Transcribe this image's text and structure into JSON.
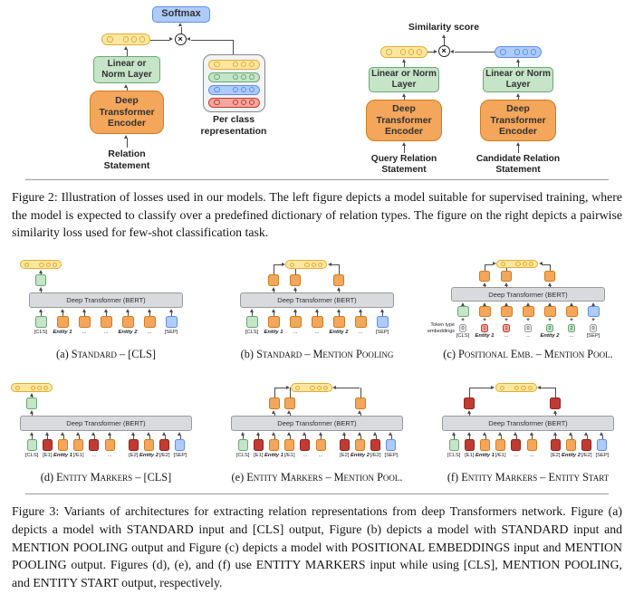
{
  "palette": {
    "yellow": {
      "bg": "#fbe7a0",
      "bd": "#e3ab37"
    },
    "green": {
      "bg": "#c5e4c8",
      "bd": "#68a871"
    },
    "orange": {
      "bg": "#f4a65b",
      "bd": "#cd7d20"
    },
    "red": {
      "bg": "#c23b32",
      "bd": "#8c241d"
    },
    "redlight": {
      "bg": "#f0a9a1",
      "bd": "#cb372b"
    },
    "blue": {
      "bg": "#aecbfa",
      "bd": "#5f8fe8"
    },
    "gray": {
      "bg": "#e7e8ea",
      "bd": "#9da1a6"
    }
  },
  "figure2": {
    "left": {
      "softmax": "Softmax",
      "linear": "Linear or Norm Layer",
      "encoder": "Deep Transformer Encoder",
      "input": "Relation Statement",
      "stack_label": "Per class representation",
      "stack_colors": [
        "yellow",
        "green",
        "blue",
        "redlight"
      ]
    },
    "right": {
      "score": "Similarity score",
      "branches": [
        {
          "embed_color": "yellow",
          "linear": "Linear or Norm Layer",
          "encoder": "Deep Transformer Encoder",
          "input": "Query Relation Statement"
        },
        {
          "embed_color": "blue",
          "linear": "Linear or Norm Layer",
          "encoder": "Deep Transformer Encoder",
          "input": "Candidate Relation Statement"
        }
      ]
    },
    "caption": "Figure 2: Illustration of losses used in our models. The left figure depicts a model suitable for supervised training, where the model is expected to classify over a predefined dictionary of relation types. The figure on the right depicts a pairwise similarity loss used for few-shot classification task."
  },
  "figure3": {
    "diagrams": [
      {
        "id": "a",
        "caption_prefix": "(a)",
        "caption": "Standard – [CLS]",
        "bert": "Deep Transformer (BERT)",
        "pill": "left",
        "outputs": [
          {
            "i": 0,
            "color": "green"
          }
        ],
        "tokens": [
          {
            "color": "green",
            "label": "[CLS]"
          },
          {
            "color": "orange",
            "label": "Entity 1",
            "em": true
          },
          {
            "color": "orange",
            "label": "..."
          },
          {
            "color": "orange",
            "label": "..."
          },
          {
            "color": "orange",
            "label": "Entity 2",
            "em": true
          },
          {
            "color": "orange",
            "label": "..."
          },
          {
            "color": "blue",
            "label": "[SEP]"
          }
        ]
      },
      {
        "id": "b",
        "caption_prefix": "(b)",
        "caption": "Standard – Mention Pooling",
        "bert": "Deep Transformer (BERT)",
        "pill": "center",
        "outputs": [
          {
            "i": 1,
            "color": "orange"
          },
          {
            "i": 2,
            "color": "orange"
          },
          {
            "i": 4,
            "color": "orange"
          }
        ],
        "tokens": [
          {
            "color": "green",
            "label": "[CLS]"
          },
          {
            "color": "orange",
            "label": "Entity 1",
            "em": true
          },
          {
            "color": "orange",
            "label": "..."
          },
          {
            "color": "orange",
            "label": "..."
          },
          {
            "color": "orange",
            "label": "Entity 2",
            "em": true
          },
          {
            "color": "orange",
            "label": "..."
          },
          {
            "color": "blue",
            "label": "[SEP]"
          }
        ]
      },
      {
        "id": "c",
        "caption_prefix": "(c)",
        "caption": "Positional Emb. – Mention Pool.",
        "bert": "Deep Transformer (BERT)",
        "pill": "center",
        "outputs": [
          {
            "i": 1,
            "color": "orange"
          },
          {
            "i": 2,
            "color": "orange"
          },
          {
            "i": 4,
            "color": "orange"
          }
        ],
        "types_label": "Token type embeddings",
        "types": [
          {
            "v": "0",
            "color": "gray"
          },
          {
            "v": "1",
            "color": "redlight"
          },
          {
            "v": "1",
            "color": "redlight"
          },
          {
            "v": "0",
            "color": "gray"
          },
          {
            "v": "2",
            "color": "green"
          },
          {
            "v": "2",
            "color": "green"
          },
          {
            "v": "0",
            "color": "gray"
          }
        ],
        "tokens": [
          {
            "color": "green",
            "label": "[CLS]"
          },
          {
            "color": "orange",
            "label": "Entity 1",
            "em": true
          },
          {
            "color": "orange",
            "label": "..."
          },
          {
            "color": "orange",
            "label": "..."
          },
          {
            "color": "orange",
            "label": "Entity 2",
            "em": true
          },
          {
            "color": "orange",
            "label": "..."
          },
          {
            "color": "blue",
            "label": "[SEP]"
          }
        ]
      },
      {
        "id": "d",
        "caption_prefix": "(d)",
        "caption": "Entity Markers – [CLS]",
        "bert": "Deep Transformer (BERT)",
        "pill": "left",
        "outputs": [
          {
            "i": 0,
            "color": "green"
          }
        ],
        "tokens": [
          {
            "color": "green",
            "label": "[CLS]"
          },
          {
            "color": "red",
            "label": "[E1]"
          },
          {
            "color": "orange",
            "label": "Entity 1",
            "em": true
          },
          {
            "color": "orange",
            "label": "[/E1]"
          },
          {
            "color": "red",
            "label": "..."
          },
          {
            "color": "orange",
            "label": "..."
          },
          {
            "color": "red",
            "label": "[E2]",
            "gap": true
          },
          {
            "color": "orange",
            "label": "Entity 2",
            "em": true
          },
          {
            "color": "red",
            "label": "[/E2]"
          },
          {
            "color": "blue",
            "label": "[SEP]"
          }
        ]
      },
      {
        "id": "e",
        "caption_prefix": "(e)",
        "caption": "Entity Markers – Mention Pool.",
        "bert": "Deep Transformer (BERT)",
        "pill": "center",
        "outputs": [
          {
            "i": 2,
            "color": "orange"
          },
          {
            "i": 3,
            "color": "orange"
          },
          {
            "i": 7,
            "color": "orange"
          }
        ],
        "tokens": [
          {
            "color": "green",
            "label": "[CLS]"
          },
          {
            "color": "red",
            "label": "[E1]"
          },
          {
            "color": "orange",
            "label": "Entity 1",
            "em": true
          },
          {
            "color": "orange",
            "label": "[/E1]"
          },
          {
            "color": "red",
            "label": "..."
          },
          {
            "color": "orange",
            "label": "..."
          },
          {
            "color": "red",
            "label": "[E2]",
            "gap": true
          },
          {
            "color": "orange",
            "label": "Entity 2",
            "em": true
          },
          {
            "color": "red",
            "label": "[/E2]"
          },
          {
            "color": "blue",
            "label": "[SEP]"
          }
        ]
      },
      {
        "id": "f",
        "caption_prefix": "(f)",
        "caption": "Entity Markers – Entity Start",
        "bert": "Deep Transformer (BERT)",
        "pill": "center",
        "outputs": [
          {
            "i": 1,
            "color": "red"
          },
          {
            "i": 6,
            "color": "red"
          }
        ],
        "tokens": [
          {
            "color": "green",
            "label": "[CLS]"
          },
          {
            "color": "red",
            "label": "[E1]"
          },
          {
            "color": "orange",
            "label": "Entity 1",
            "em": true
          },
          {
            "color": "orange",
            "label": "[/E1]"
          },
          {
            "color": "red",
            "label": "..."
          },
          {
            "color": "orange",
            "label": "..."
          },
          {
            "color": "red",
            "label": "[E2]",
            "gap": true
          },
          {
            "color": "orange",
            "label": "Entity 2",
            "em": true
          },
          {
            "color": "red",
            "label": "[/E2]"
          },
          {
            "color": "blue",
            "label": "[SEP]"
          }
        ]
      }
    ],
    "caption": "Figure 3: Variants of architectures for extracting relation representations from deep Transformers network. Figure (a) depicts a model with STANDARD input and [CLS] output, Figure (b) depicts a model with STANDARD input and MENTION POOLING output and Figure (c) depicts a model with POSITIONAL EMBEDDINGS input and MENTION POOLING output. Figures (d), (e), and (f) use ENTITY MARKERS input while using [CLS], MENTION POOLING, and ENTITY START output, respectively."
  }
}
